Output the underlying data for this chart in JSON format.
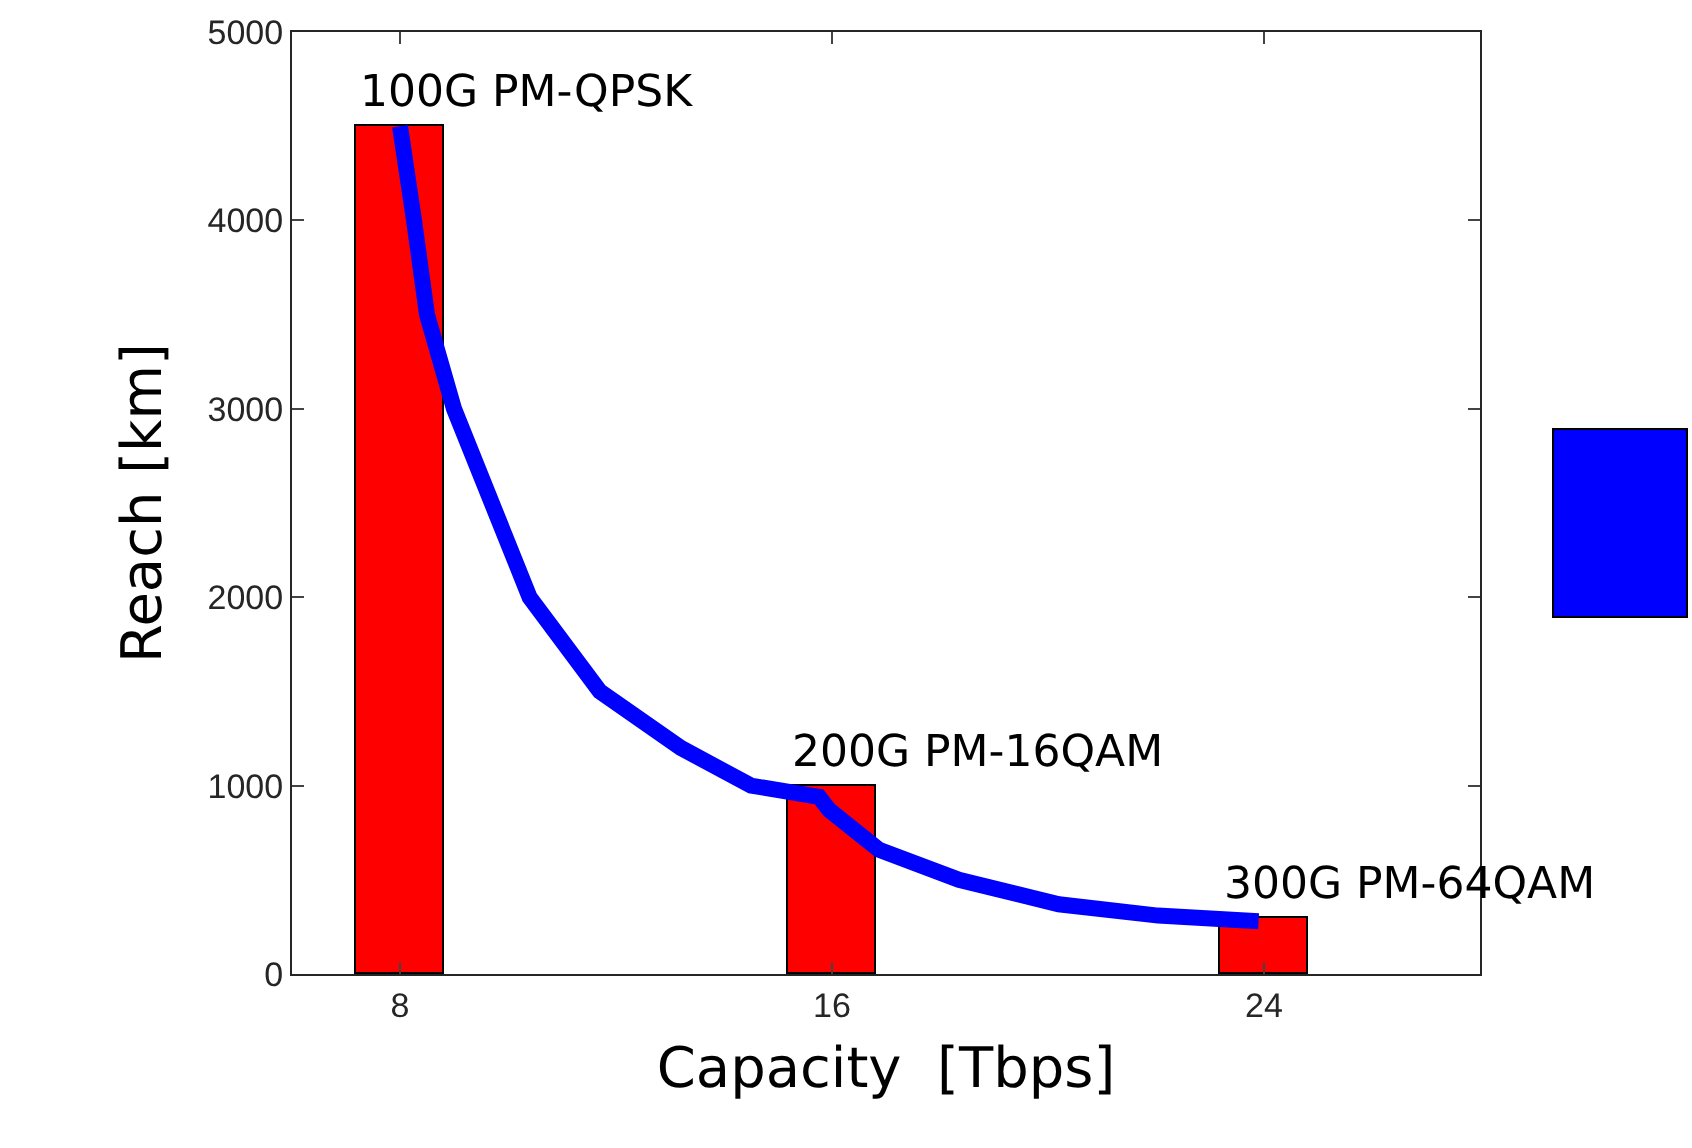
{
  "chart_data": {
    "type": "bar",
    "xlabel": "Capacity  [Tbps]",
    "ylabel": "Reach [km]",
    "x": [
      8,
      16,
      24
    ],
    "series": [
      {
        "color": "#ff0000",
        "values": [
          4500,
          1000,
          300
        ]
      },
      {
        "type": "line",
        "color": "#0000ff",
        "x": [
          8.0,
          8.26,
          8.5,
          9.0,
          10.4,
          11.7,
          13.2,
          14.5,
          15.76,
          15.95,
          16.87,
          18.35,
          20.2,
          22.04,
          23.9
        ],
        "values": [
          4500,
          4000,
          3500,
          3000,
          2000,
          1500,
          1200,
          1000,
          940,
          870,
          660,
          500,
          370,
          310,
          280
        ]
      }
    ],
    "xlim": [
      6,
      28
    ],
    "xticks": [
      8,
      16,
      24
    ],
    "ylim": [
      0,
      5000
    ],
    "yticks": [
      0,
      1000,
      2000,
      3000,
      4000,
      5000
    ],
    "grid": false,
    "annotations": [
      {
        "text": "100G PM-QPSK",
        "x": 8,
        "y": 4500
      },
      {
        "text": "200G PM-16QAM",
        "x": 16,
        "y": 1000
      },
      {
        "text": "300G PM-64QAM",
        "x": 24,
        "y": 300
      }
    ]
  }
}
